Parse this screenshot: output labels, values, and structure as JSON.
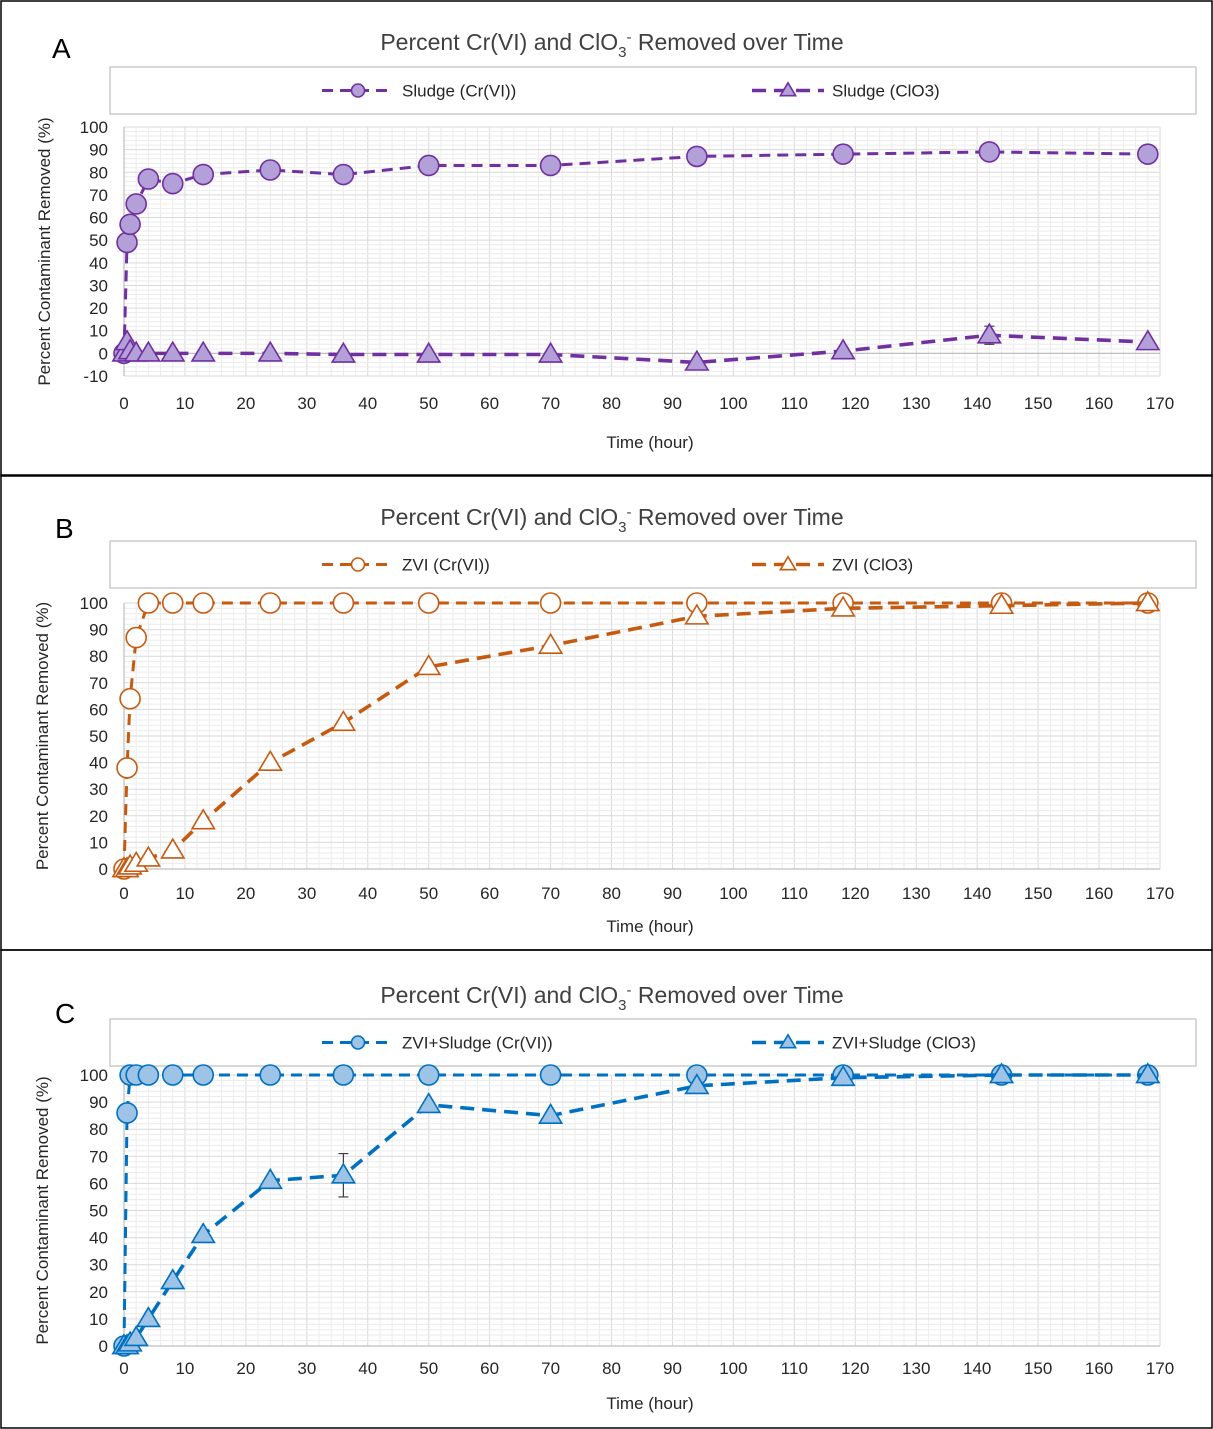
{
  "chart_data": [
    {
      "panel": "A",
      "type": "line",
      "title": "Percent Cr(VI) and ClO3- Removed over Time",
      "title_main": "Percent Cr(VI) and ClO",
      "title_sub": "3",
      "title_sup": "-",
      "title_end": " Removed over Time",
      "xlabel": "Time (hour)",
      "ylabel": "Percent Contaminant Removed (%)",
      "xlim": [
        0,
        170
      ],
      "ylim": [
        -10,
        100
      ],
      "xticks": [
        0,
        10,
        20,
        30,
        40,
        50,
        60,
        70,
        80,
        90,
        100,
        110,
        120,
        130,
        140,
        150,
        160,
        170
      ],
      "yticks": [
        -10,
        0,
        10,
        20,
        30,
        40,
        50,
        60,
        70,
        80,
        90,
        100
      ],
      "grid": true,
      "legend": "top",
      "color": "#7030a0",
      "marker_fill": "#b4a0d8",
      "series": [
        {
          "name": "Sludge (Cr(VI))",
          "marker": "circle",
          "x": [
            0,
            0.5,
            1,
            2,
            4,
            8,
            13,
            24,
            36,
            50,
            70,
            94,
            118,
            142,
            168
          ],
          "y": [
            0,
            49,
            57,
            66,
            77,
            75,
            79,
            81,
            79,
            83,
            83,
            87,
            88,
            89,
            88
          ]
        },
        {
          "name": "Sludge (ClO3)",
          "marker": "triangle",
          "x": [
            0,
            0.5,
            1,
            2,
            4,
            8,
            13,
            24,
            36,
            50,
            70,
            94,
            118,
            142,
            168
          ],
          "y": [
            0,
            5,
            1,
            0,
            0,
            0,
            0,
            0,
            -0.5,
            -0.5,
            -0.5,
            -4,
            1,
            8,
            5
          ],
          "error": [
            0,
            0,
            0,
            0,
            0,
            0,
            0,
            0,
            0,
            0,
            0,
            0,
            0,
            4,
            0
          ]
        }
      ]
    },
    {
      "panel": "B",
      "type": "line",
      "title": "Percent Cr(VI) and ClO3- Removed over Time",
      "title_main": "Percent Cr(VI) and ClO",
      "title_sub": "3",
      "title_sup": "-",
      "title_end": " Removed over Time",
      "xlabel": "Time (hour)",
      "ylabel": "Percent Contaminant Removed (%)",
      "xlim": [
        0,
        170
      ],
      "ylim": [
        0,
        100
      ],
      "xticks": [
        0,
        10,
        20,
        30,
        40,
        50,
        60,
        70,
        80,
        90,
        100,
        110,
        120,
        130,
        140,
        150,
        160,
        170
      ],
      "yticks": [
        0,
        10,
        20,
        30,
        40,
        50,
        60,
        70,
        80,
        90,
        100
      ],
      "grid": true,
      "legend": "top",
      "color": "#c55a11",
      "marker_fill": "#ffffff",
      "series": [
        {
          "name": "ZVI (Cr(VI))",
          "marker": "circle",
          "x": [
            0,
            0.5,
            1,
            2,
            4,
            8,
            13,
            24,
            36,
            50,
            70,
            94,
            118,
            144,
            168
          ],
          "y": [
            0,
            38,
            64,
            87,
            100,
            100,
            100,
            100,
            100,
            100,
            100,
            100,
            100,
            100,
            100
          ]
        },
        {
          "name": "ZVI (ClO3)",
          "marker": "triangle",
          "x": [
            0,
            0.5,
            1,
            2,
            4,
            8,
            13,
            24,
            36,
            50,
            70,
            94,
            118,
            144,
            168
          ],
          "y": [
            0,
            0,
            1,
            2,
            4,
            7,
            18,
            40,
            55,
            76,
            84,
            95,
            98,
            99,
            100
          ]
        }
      ]
    },
    {
      "panel": "C",
      "type": "line",
      "title": "Percent Cr(VI) and ClO3- Removed over Time",
      "title_main": "Percent Cr(VI) and ClO",
      "title_sub": "3",
      "title_sup": "-",
      "title_end": " Removed over Time",
      "xlabel": "Time (hour)",
      "ylabel": "Percent Contaminant Removed (%)",
      "xlim": [
        0,
        170
      ],
      "ylim": [
        0,
        100
      ],
      "xticks": [
        0,
        10,
        20,
        30,
        40,
        50,
        60,
        70,
        80,
        90,
        100,
        110,
        120,
        130,
        140,
        150,
        160,
        170
      ],
      "yticks": [
        0,
        10,
        20,
        30,
        40,
        50,
        60,
        70,
        80,
        90,
        100
      ],
      "grid": true,
      "legend": "top",
      "color": "#0070c0",
      "marker_fill": "#9dc3e6",
      "series": [
        {
          "name": "ZVI+Sludge (Cr(VI))",
          "marker": "circle",
          "x": [
            0,
            0.5,
            1,
            2,
            4,
            8,
            13,
            24,
            36,
            50,
            70,
            94,
            118,
            144,
            168
          ],
          "y": [
            0,
            86,
            100,
            100,
            100,
            100,
            100,
            100,
            100,
            100,
            100,
            100,
            100,
            100,
            100
          ]
        },
        {
          "name": "ZVI+Sludge (ClO3)",
          "marker": "triangle",
          "x": [
            0,
            0.5,
            1,
            2,
            4,
            8,
            13,
            24,
            36,
            50,
            70,
            94,
            118,
            144,
            168
          ],
          "y": [
            0,
            0,
            1,
            3,
            10,
            24,
            41,
            61,
            63,
            89,
            85,
            96,
            99,
            100,
            100
          ],
          "error": [
            0,
            0,
            0,
            0,
            0,
            0,
            0,
            0,
            8,
            0,
            0,
            0,
            0,
            0,
            0
          ]
        }
      ]
    }
  ]
}
